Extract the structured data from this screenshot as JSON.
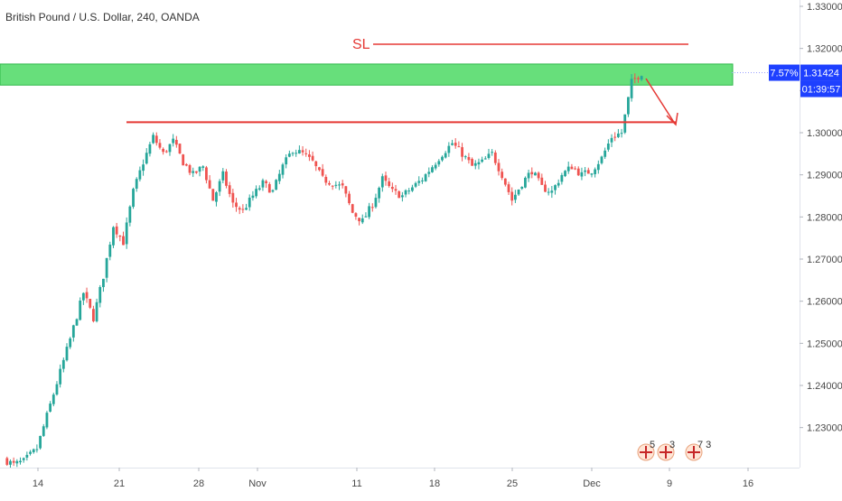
{
  "header": {
    "symbol_title": "British Pound / U.S. Dollar, 240, OANDA"
  },
  "price_labels": {
    "percent": "7.57%",
    "last_price": "1.31424",
    "countdown": "01:39:57"
  },
  "annotations": {
    "sl_label": "SL"
  },
  "events": [
    {
      "id": "e1",
      "flag": "uk-flag-icon",
      "label": "5"
    },
    {
      "id": "e2",
      "flag": "uk-flag-icon",
      "label": "3"
    },
    {
      "id": "e3",
      "flag": "uk-flag-icon",
      "label": "7 3"
    }
  ],
  "colors": {
    "up": "#26a69a",
    "down": "#ef5350",
    "zone": "#4cd964",
    "line": "#e53935",
    "price_tag": "#1e40ff",
    "axis_text": "#4a4a4a"
  },
  "chart_data": {
    "type": "candlestick",
    "title": "British Pound / U.S. Dollar, 240, OANDA",
    "yticks": [
      1.23,
      1.24,
      1.25,
      1.26,
      1.27,
      1.28,
      1.29,
      1.3,
      1.31,
      1.32,
      1.33
    ],
    "ytick_labels": [
      "1.23000",
      "1.24000",
      "1.25000",
      "1.26000",
      "1.27000",
      "1.28000",
      "1.29000",
      "1.30000",
      "1.31000",
      "1.32000",
      "1.33000"
    ],
    "xtick_labels": [
      "14",
      "21",
      "28",
      "Nov",
      "11",
      "18",
      "25",
      "Dec",
      "9",
      "16"
    ],
    "ylim": [
      1.2205,
      1.3315
    ],
    "last_price": 1.31424,
    "supply_zone": [
      1.3113,
      1.3163
    ],
    "sl_level": 1.321,
    "support_level": 1.3025,
    "price_path": [
      [
        0,
        1.2225
      ],
      [
        3,
        1.2212
      ],
      [
        6,
        1.222
      ],
      [
        10,
        1.225
      ],
      [
        15,
        1.238
      ],
      [
        20,
        1.251
      ],
      [
        24,
        1.262
      ],
      [
        27,
        1.256
      ],
      [
        30,
        1.266
      ],
      [
        33,
        1.278
      ],
      [
        36,
        1.274
      ],
      [
        39,
        1.286
      ],
      [
        42,
        1.293
      ],
      [
        45,
        1.299
      ],
      [
        48,
        1.295
      ],
      [
        51,
        1.298
      ],
      [
        54,
        1.293
      ],
      [
        57,
        1.29
      ],
      [
        60,
        1.292
      ],
      [
        63,
        1.284
      ],
      [
        66,
        1.29
      ],
      [
        69,
        1.283
      ],
      [
        72,
        1.2815
      ],
      [
        75,
        1.285
      ],
      [
        78,
        1.288
      ],
      [
        81,
        1.286
      ],
      [
        84,
        1.292
      ],
      [
        87,
        1.296
      ],
      [
        90,
        1.295
      ],
      [
        93,
        1.293
      ],
      [
        96,
        1.289
      ],
      [
        99,
        1.288
      ],
      [
        102,
        1.287
      ],
      [
        105,
        1.281
      ],
      [
        108,
        1.279
      ],
      [
        111,
        1.283
      ],
      [
        114,
        1.289
      ],
      [
        117,
        1.286
      ],
      [
        120,
        1.285
      ],
      [
        123,
        1.287
      ],
      [
        126,
        1.289
      ],
      [
        129,
        1.292
      ],
      [
        132,
        1.295
      ],
      [
        135,
        1.2975
      ],
      [
        138,
        1.295
      ],
      [
        141,
        1.292
      ],
      [
        144,
        1.293
      ],
      [
        147,
        1.295
      ],
      [
        150,
        1.29
      ],
      [
        153,
        1.284
      ],
      [
        156,
        1.288
      ],
      [
        159,
        1.291
      ],
      [
        162,
        1.287
      ],
      [
        165,
        1.286
      ],
      [
        168,
        1.29
      ],
      [
        171,
        1.292
      ],
      [
        174,
        1.29
      ],
      [
        177,
        1.291
      ],
      [
        180,
        1.294
      ],
      [
        183,
        1.299
      ],
      [
        186,
        1.3
      ],
      [
        189,
        1.312
      ],
      [
        192,
        1.3142
      ]
    ]
  }
}
